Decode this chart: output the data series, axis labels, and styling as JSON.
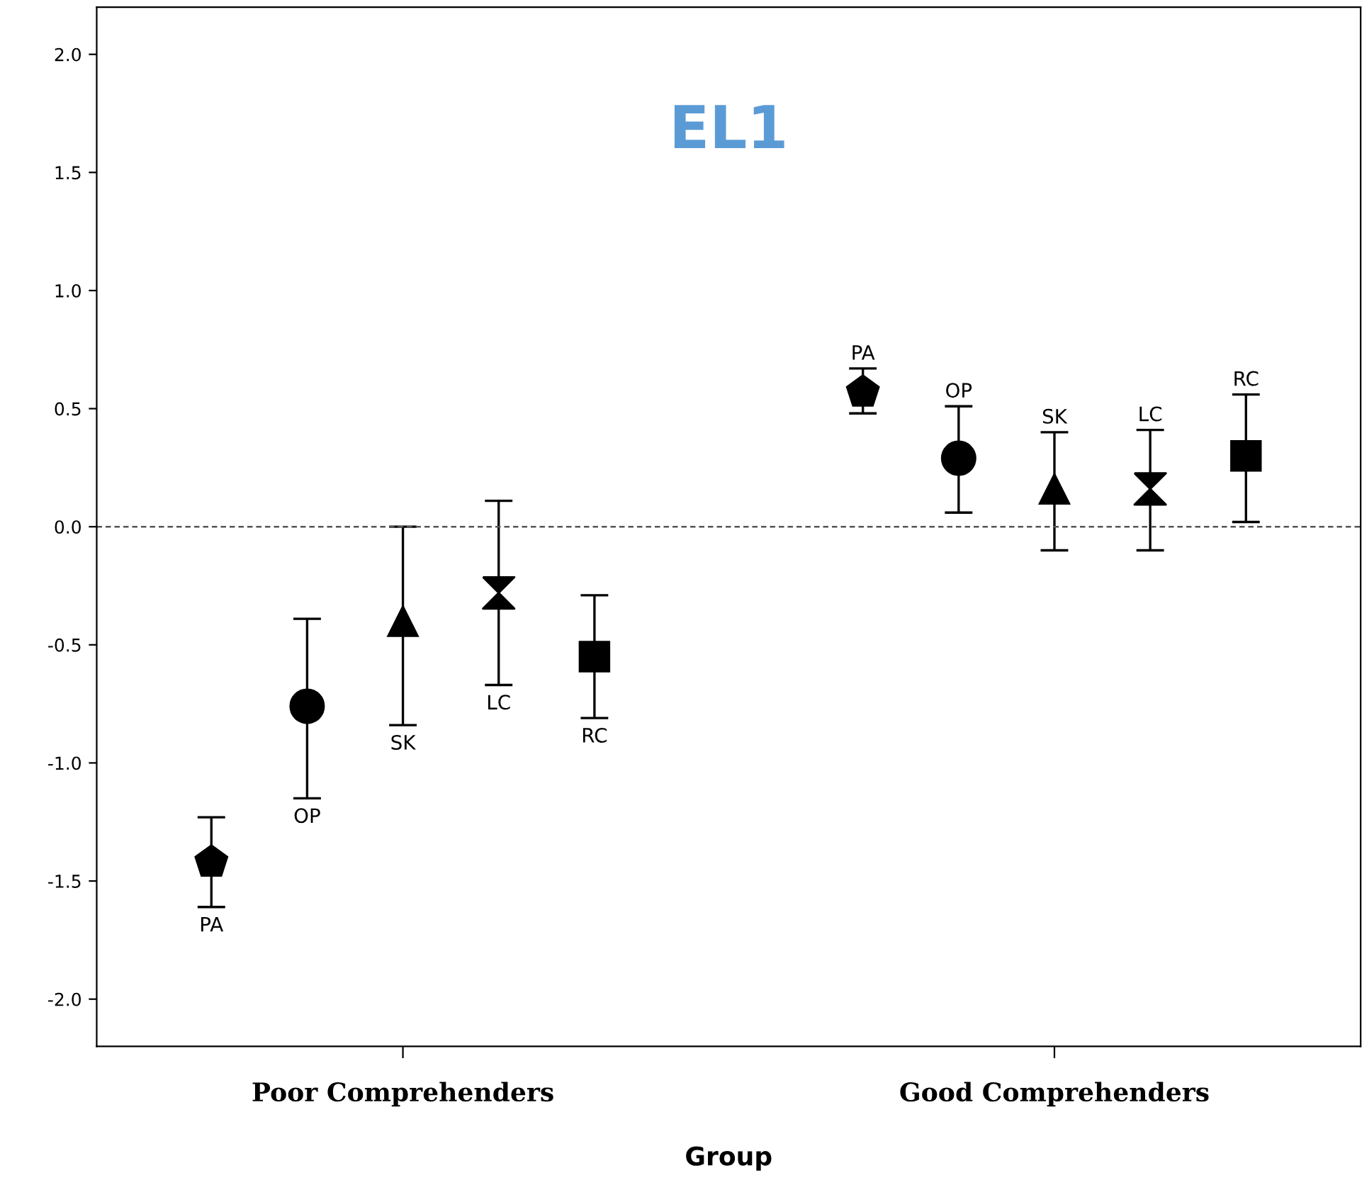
{
  "chart_data": {
    "type": "scatter",
    "title": "EL1",
    "xlabel": "Group",
    "categories": [
      "Poor Comprehenders",
      "Good Comprehenders"
    ],
    "series": [
      {
        "name": "PA",
        "color": "#000000",
        "values": [
          -1.42,
          0.57
        ],
        "errors": [
          [
            -1.61,
            -1.23
          ],
          [
            0.48,
            0.67
          ]
        ]
      },
      {
        "name": "OP",
        "color": "#000000",
        "marker": "circle",
        "values": [
          -0.76,
          0.29
        ],
        "errors": [
          [
            -1.15,
            -0.39
          ],
          [
            0.06,
            0.51
          ]
        ]
      },
      {
        "name": "SK",
        "color": "#000000",
        "marker": "triangle",
        "values": [
          -0.4,
          0.16
        ],
        "errors": [
          [
            -0.84,
            0.0
          ],
          [
            -0.1,
            0.4
          ]
        ]
      },
      {
        "name": "LC",
        "color": "#000000",
        "values": [
          -0.28,
          0.16
        ],
        "errors": [
          [
            -0.67,
            0.11
          ],
          [
            -0.1,
            0.41
          ]
        ]
      },
      {
        "name": "RC",
        "color": "#000000",
        "marker": "square",
        "values": [
          -0.55,
          0.3
        ],
        "errors": [
          [
            -0.81,
            -0.29
          ],
          [
            0.02,
            0.56
          ]
        ]
      }
    ],
    "ylim": [
      -2.2,
      2.2
    ],
    "yticks": [
      {
        "value": -2.0,
        "label": "-2.0"
      },
      {
        "value": -1.5,
        "label": "-1.5"
      },
      {
        "value": -1.0,
        "label": "-1.0"
      },
      {
        "value": -0.5,
        "label": "-0.5"
      },
      {
        "value": 0.0,
        "label": "0.0"
      },
      {
        "value": 0.5,
        "label": "0.5"
      },
      {
        "value": 1.0,
        "label": "1.0"
      },
      {
        "value": 1.5,
        "label": "1.5"
      },
      {
        "value": 2.0,
        "label": "2.0"
      }
    ],
    "ref_lines": [
      {
        "axis": "y",
        "value": 0.0,
        "label": null,
        "line_style": "dashed",
        "color": "#555555"
      }
    ],
    "grid": false,
    "legend": false
  }
}
